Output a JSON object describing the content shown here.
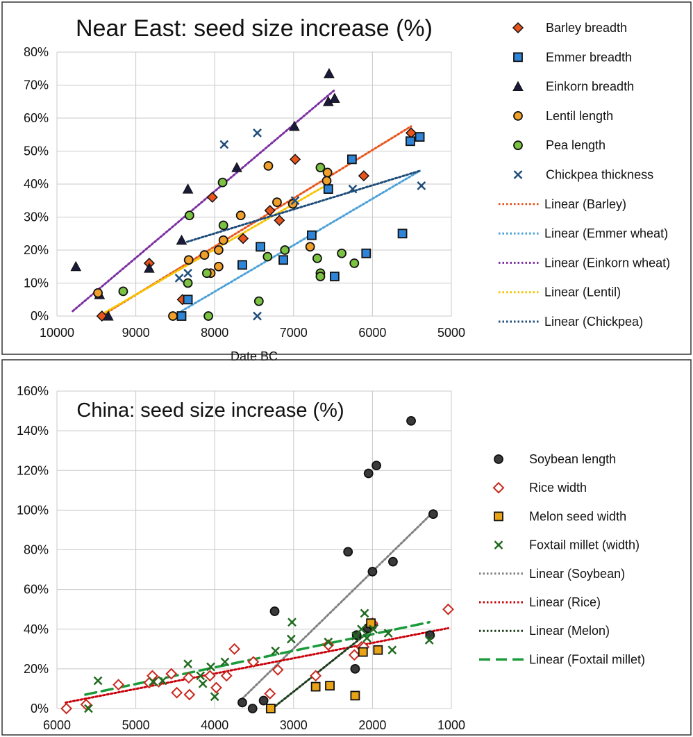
{
  "chart_data": [
    {
      "type": "scatter",
      "title": "Near East: seed size increase (%)",
      "xlabel": "Date BC",
      "ylabel": "",
      "x_reversed": true,
      "xlim": [
        10000,
        5000
      ],
      "ylim": [
        0,
        80
      ],
      "x_ticks": [
        "10000",
        "9000",
        "8000",
        "7000",
        "6000",
        "5000"
      ],
      "y_ticks": [
        "0%",
        "10%",
        "20%",
        "30%",
        "40%",
        "50%",
        "60%",
        "70%",
        "80%"
      ],
      "grid": true,
      "legend_position": "right",
      "series": [
        {
          "name": "Barley breadth",
          "marker": "diamond",
          "color": "#e8541c",
          "points": [
            [
              9430,
              0
            ],
            [
              8410,
              5
            ],
            [
              8830,
              16
            ],
            [
              8030,
              36
            ],
            [
              7640,
              23.5
            ],
            [
              7300,
              32
            ],
            [
              7180,
              29
            ],
            [
              6980,
              47.5
            ],
            [
              6110,
              42.5
            ],
            [
              5510,
              55.5
            ]
          ]
        },
        {
          "name": "Emmer breadth",
          "marker": "square",
          "color": "#2e84d6",
          "points": [
            [
              8420,
              0
            ],
            [
              8340,
              5
            ],
            [
              7650,
              15.5
            ],
            [
              7420,
              21
            ],
            [
              7130,
              17
            ],
            [
              6770,
              24.5
            ],
            [
              6560,
              38.5
            ],
            [
              6480,
              12
            ],
            [
              6260,
              47.5
            ],
            [
              6080,
              19
            ],
            [
              5620,
              25
            ],
            [
              5520,
              53
            ],
            [
              5400,
              54.3
            ]
          ]
        },
        {
          "name": "Einkorn breadth",
          "marker": "triangle",
          "color": "#1a1a3a",
          "points": [
            [
              9760,
              15
            ],
            [
              9460,
              6.5
            ],
            [
              9350,
              0
            ],
            [
              8830,
              14.5
            ],
            [
              8420,
              23
            ],
            [
              8340,
              38.5
            ],
            [
              7720,
              45
            ],
            [
              6990,
              57.5
            ],
            [
              6560,
              65
            ],
            [
              6550,
              73.5
            ],
            [
              6480,
              66
            ]
          ]
        },
        {
          "name": "Lentil length",
          "marker": "circle",
          "color": "#f0a02a",
          "points": [
            [
              9480,
              7
            ],
            [
              8530,
              0
            ],
            [
              8330,
              17
            ],
            [
              8130,
              18.5
            ],
            [
              8050,
              13
            ],
            [
              7950,
              15
            ],
            [
              7950,
              20
            ],
            [
              7890,
              23
            ],
            [
              7670,
              30.5
            ],
            [
              7320,
              45.5
            ],
            [
              7210,
              34.5
            ],
            [
              7010,
              34
            ],
            [
              6790,
              21
            ],
            [
              6580,
              41
            ],
            [
              6570,
              43.5
            ]
          ]
        },
        {
          "name": "Pea length",
          "marker": "circle",
          "color": "#7cc242",
          "points": [
            [
              9160,
              7.5
            ],
            [
              8340,
              10
            ],
            [
              8320,
              30.5
            ],
            [
              8080,
              0
            ],
            [
              8100,
              13
            ],
            [
              7890,
              27.5
            ],
            [
              7900,
              40.5
            ],
            [
              7440,
              4.5
            ],
            [
              7330,
              18
            ],
            [
              7110,
              20
            ],
            [
              6700,
              17.5
            ],
            [
              6660,
              13
            ],
            [
              6660,
              12
            ],
            [
              6660,
              45
            ],
            [
              6390,
              19
            ],
            [
              6230,
              16
            ]
          ]
        },
        {
          "name": "Chickpea thickness",
          "marker": "x",
          "color": "#1f4d7a",
          "points": [
            [
              8450,
              11.5
            ],
            [
              8340,
              13
            ],
            [
              7880,
              52
            ],
            [
              7460,
              55.5
            ],
            [
              7460,
              0
            ],
            [
              6980,
              35
            ],
            [
              6250,
              38.5
            ],
            [
              5380,
              39.5
            ]
          ]
        }
      ],
      "trendlines": [
        {
          "name": "Linear (Barley)",
          "color": "#e8541c",
          "style": "dotted",
          "from": [
            9440,
            0
          ],
          "to": [
            5510,
            57.5
          ]
        },
        {
          "name": "Linear (Emmer wheat)",
          "color": "#4aa0d8",
          "style": "dotted",
          "from": [
            8420,
            1.5
          ],
          "to": [
            5400,
            44
          ]
        },
        {
          "name": "Linear (Einkorn wheat)",
          "color": "#7b2fa0",
          "style": "dotted",
          "from": [
            9800,
            1.5
          ],
          "to": [
            6480,
            68.5
          ]
        },
        {
          "name": "Linear (Lentil)",
          "color": "#f5c400",
          "style": "dotted",
          "from": [
            9470,
            0
          ],
          "to": [
            6560,
            40
          ]
        },
        {
          "name": "Linear (Chickpea)",
          "color": "#1f4d7a",
          "style": "dotted",
          "from": [
            8350,
            22.5
          ],
          "to": [
            5400,
            44
          ]
        }
      ]
    },
    {
      "type": "scatter",
      "title": "China: seed size increase (%)",
      "xlabel": "",
      "ylabel": "",
      "x_reversed": true,
      "xlim": [
        6000,
        1000
      ],
      "ylim": [
        0,
        160
      ],
      "x_ticks": [
        "6000",
        "5000",
        "4000",
        "3000",
        "2000",
        "1000"
      ],
      "y_ticks": [
        "0%",
        "20%",
        "40%",
        "60%",
        "80%",
        "100%",
        "120%",
        "140%",
        "160%"
      ],
      "grid": true,
      "legend_position": "right",
      "series": [
        {
          "name": "Soybean length",
          "marker": "circle",
          "color": "#3a3a3a",
          "points": [
            [
              3650,
              3
            ],
            [
              3520,
              0
            ],
            [
              3380,
              4
            ],
            [
              3240,
              49
            ],
            [
              2310,
              79
            ],
            [
              2220,
              20
            ],
            [
              2200,
              37
            ],
            [
              2060,
              40.5
            ],
            [
              2000,
              42
            ],
            [
              2000,
              69
            ],
            [
              2050,
              118.5
            ],
            [
              1950,
              122.5
            ],
            [
              1740,
              74
            ],
            [
              1510,
              145
            ],
            [
              1270,
              37
            ],
            [
              1230,
              98
            ]
          ]
        },
        {
          "name": "Rice width",
          "marker": "diamond-open",
          "color": "#c8281e",
          "points": [
            [
              5880,
              0
            ],
            [
              5630,
              2
            ],
            [
              5220,
              12
            ],
            [
              4830,
              13
            ],
            [
              4790,
              16.5
            ],
            [
              4710,
              13.5
            ],
            [
              4550,
              17.5
            ],
            [
              4480,
              8
            ],
            [
              4330,
              15.5
            ],
            [
              4320,
              7
            ],
            [
              4060,
              16.5
            ],
            [
              3980,
              10.5
            ],
            [
              3850,
              16.5
            ],
            [
              3750,
              30
            ],
            [
              3510,
              23.5
            ],
            [
              3300,
              7.5
            ],
            [
              3200,
              19.5
            ],
            [
              2720,
              16.5
            ],
            [
              2560,
              32
            ],
            [
              2230,
              27
            ],
            [
              2140,
              31
            ],
            [
              2110,
              31
            ],
            [
              2000,
              43
            ],
            [
              1040,
              50
            ]
          ]
        },
        {
          "name": "Melon seed width",
          "marker": "square",
          "color": "#e8a317",
          "points": [
            [
              3290,
              0
            ],
            [
              2720,
              11
            ],
            [
              2540,
              11.5
            ],
            [
              2220,
              6.5
            ],
            [
              2120,
              28.5
            ],
            [
              2020,
              43
            ],
            [
              1930,
              29.5
            ]
          ]
        },
        {
          "name": "Foxtail millet (width)",
          "marker": "x",
          "color": "#1f6b1f",
          "points": [
            [
              5600,
              0
            ],
            [
              5480,
              14
            ],
            [
              4780,
              13.5
            ],
            [
              4660,
              14
            ],
            [
              4340,
              22.5
            ],
            [
              4180,
              16.5
            ],
            [
              4150,
              12.5
            ],
            [
              4050,
              21
            ],
            [
              4000,
              6
            ],
            [
              3870,
              23.5
            ],
            [
              3230,
              29
            ],
            [
              3020,
              43.5
            ],
            [
              3030,
              35
            ],
            [
              2560,
              33.5
            ],
            [
              2210,
              36.5
            ],
            [
              2140,
              40
            ],
            [
              2100,
              48
            ],
            [
              2070,
              35.5
            ],
            [
              1990,
              40
            ],
            [
              1800,
              38
            ],
            [
              1750,
              29.5
            ],
            [
              1280,
              34.5
            ]
          ]
        }
      ],
      "trendlines": [
        {
          "name": "Linear (Soybean)",
          "color": "#808080",
          "style": "dotted",
          "from": [
            3650,
            5
          ],
          "to": [
            1230,
            99
          ]
        },
        {
          "name": "Linear (Rice)",
          "color": "#c8000a",
          "style": "dotted",
          "from": [
            5890,
            3
          ],
          "to": [
            1040,
            40.5
          ]
        },
        {
          "name": "Linear (Melon)",
          "color": "#1a3a1a",
          "style": "dotted",
          "from": [
            3270,
            0
          ],
          "to": [
            1940,
            42
          ]
        },
        {
          "name": "Linear (Foxtail millet)",
          "color": "#1a9a3a",
          "style": "dashed",
          "from": [
            5640,
            7
          ],
          "to": [
            1280,
            43.5
          ]
        }
      ]
    }
  ]
}
